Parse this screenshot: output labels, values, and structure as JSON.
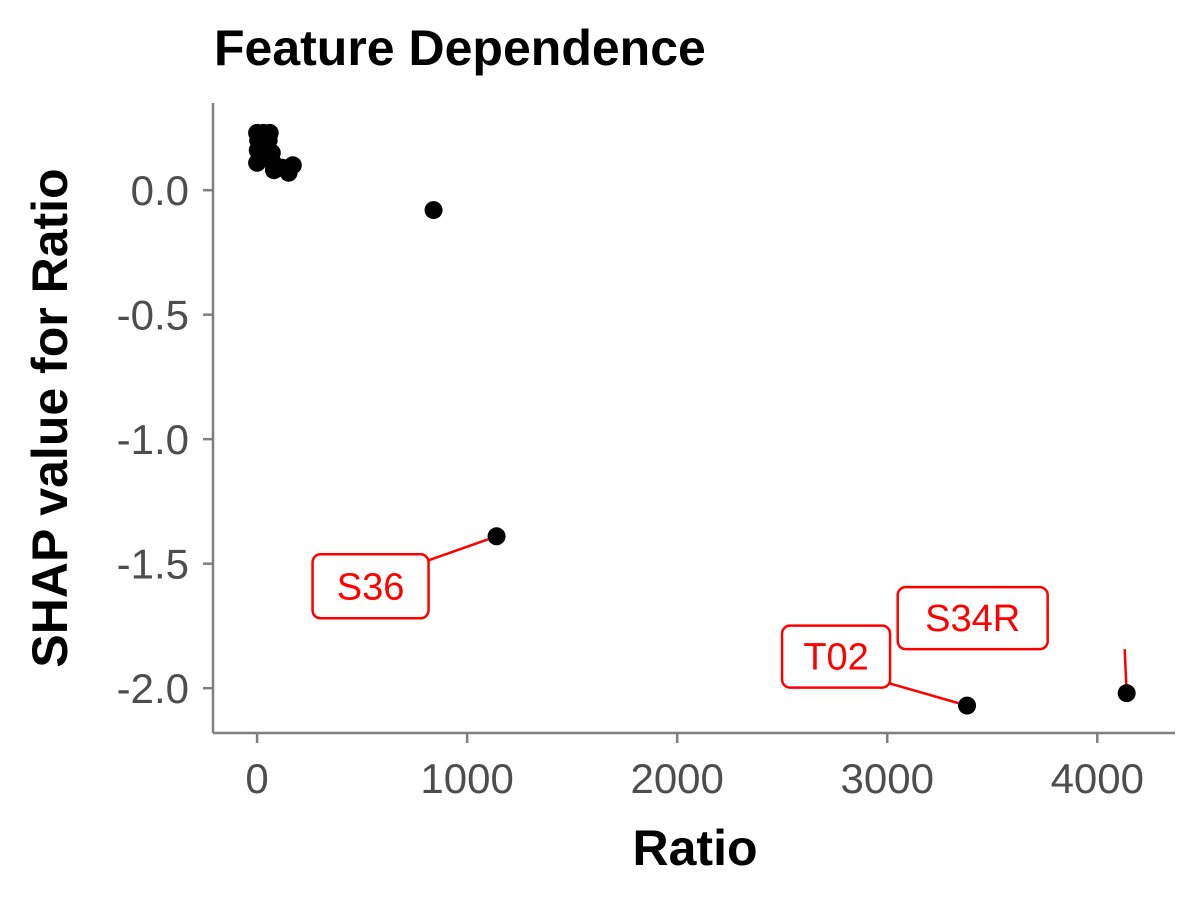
{
  "chart_data": {
    "type": "scatter",
    "title": "Feature Dependence",
    "xlabel": "Ratio",
    "ylabel": "SHAP value for Ratio",
    "xlim": [
      -210,
      4370
    ],
    "ylim": [
      -2.18,
      0.35
    ],
    "x_ticks": [
      0,
      1000,
      2000,
      3000,
      4000
    ],
    "x_tick_labels": [
      "0",
      "1000",
      "2000",
      "3000",
      "4000"
    ],
    "y_ticks": [
      0.0,
      -0.5,
      -1.0,
      -1.5,
      -2.0
    ],
    "y_tick_labels": [
      "0.0",
      "-0.5",
      "-1.0",
      "-1.5",
      "-2.0"
    ],
    "grid": false,
    "legend": "none",
    "point_color": "#000000",
    "annotation_color": "#ff0000",
    "points": [
      {
        "x": 0,
        "y": 0.23
      },
      {
        "x": 5,
        "y": 0.2
      },
      {
        "x": 3,
        "y": 0.16
      },
      {
        "x": 0,
        "y": 0.11
      },
      {
        "x": 30,
        "y": 0.23
      },
      {
        "x": 45,
        "y": 0.18
      },
      {
        "x": 35,
        "y": 0.14
      },
      {
        "x": 60,
        "y": 0.23
      },
      {
        "x": 55,
        "y": 0.2
      },
      {
        "x": 70,
        "y": 0.15
      },
      {
        "x": 75,
        "y": 0.11
      },
      {
        "x": 80,
        "y": 0.08
      },
      {
        "x": 120,
        "y": 0.09
      },
      {
        "x": 150,
        "y": 0.07
      },
      {
        "x": 170,
        "y": 0.1
      },
      {
        "x": 840,
        "y": -0.08
      },
      {
        "x": 1140,
        "y": -1.39
      },
      {
        "x": 3380,
        "y": -2.07
      },
      {
        "x": 4140,
        "y": -2.02
      }
    ],
    "annotations": [
      {
        "label": "S36",
        "x": 1140,
        "y": -1.39
      },
      {
        "label": "T02",
        "x": 3380,
        "y": -2.07
      },
      {
        "label": "S34R",
        "x": 4140,
        "y": -2.02
      }
    ]
  }
}
